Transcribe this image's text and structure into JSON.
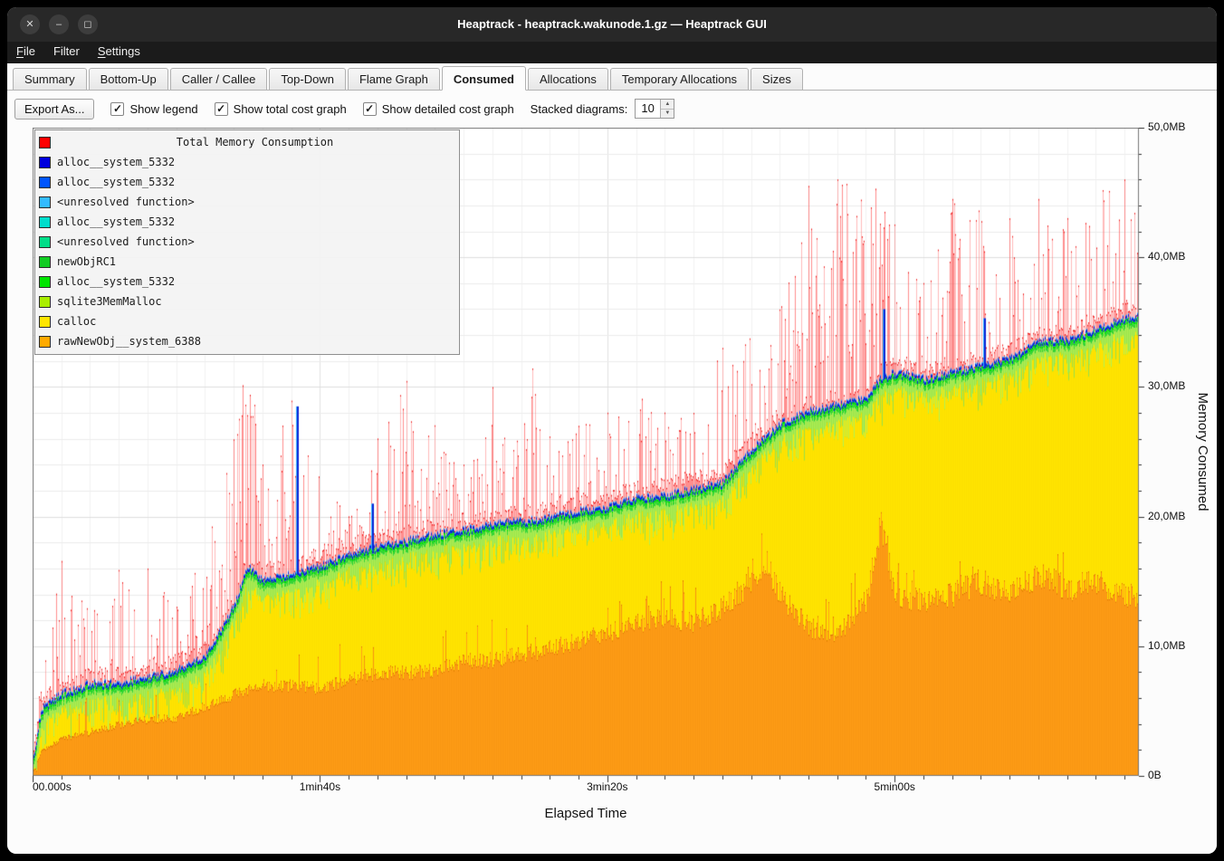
{
  "window": {
    "title": "Heaptrack - heaptrack.wakunode.1.gz — Heaptrack GUI",
    "controls": [
      {
        "id": "close",
        "glyph": "✕"
      },
      {
        "id": "minimize",
        "glyph": "–"
      },
      {
        "id": "maximize",
        "glyph": "◻"
      }
    ]
  },
  "menu": {
    "items": [
      {
        "id": "file",
        "mnemonic": "F",
        "rest": "ile"
      },
      {
        "id": "filter",
        "mnemonic": "",
        "rest": "Filter"
      },
      {
        "id": "settings",
        "mnemonic": "S",
        "rest": "ettings"
      }
    ]
  },
  "tabs": {
    "items": [
      "Summary",
      "Bottom-Up",
      "Caller / Callee",
      "Top-Down",
      "Flame Graph",
      "Consumed",
      "Allocations",
      "Temporary Allocations",
      "Sizes"
    ],
    "active": "Consumed"
  },
  "toolbar": {
    "export_label": "Export As...",
    "check_glyph": "✓",
    "checkboxes": [
      {
        "label": "Show legend",
        "checked": true
      },
      {
        "label": "Show total cost graph",
        "checked": true
      },
      {
        "label": "Show detailed cost graph",
        "checked": true
      }
    ],
    "stacked_label": "Stacked diagrams:",
    "stacked_value": "10",
    "spin_up": "▲",
    "spin_down": "▼"
  },
  "chart_data": {
    "type": "area",
    "title": "Total Memory Consumption",
    "xlabel": "Elapsed Time",
    "ylabel": "Memory Consumed",
    "x_range": [
      0,
      385
    ],
    "y_range": [
      0,
      50
    ],
    "x_ticks": [
      {
        "t": 0,
        "label": "00.000s"
      },
      {
        "t": 100,
        "label": "1min40s"
      },
      {
        "t": 200,
        "label": "3min20s"
      },
      {
        "t": 300,
        "label": "5min00s"
      }
    ],
    "y_ticks": [
      {
        "v": 0,
        "label": "0B"
      },
      {
        "v": 10,
        "label": "10,0MB"
      },
      {
        "v": 20,
        "label": "20,0MB"
      },
      {
        "v": 30,
        "label": "30,0MB"
      },
      {
        "v": 40,
        "label": "40,0MB"
      },
      {
        "v": 50,
        "label": "50,0MB"
      }
    ],
    "legend_title": {
      "label": "Total Memory Consumption",
      "color": "#ff0000"
    },
    "legend": [
      {
        "label": "alloc__system_5332",
        "color": "#0000dd"
      },
      {
        "label": "alloc__system_5332",
        "color": "#0055ff"
      },
      {
        "label": "<unresolved function>",
        "color": "#33bbff"
      },
      {
        "label": "alloc__system_5332",
        "color": "#00ddcc"
      },
      {
        "label": "<unresolved function>",
        "color": "#00dd88"
      },
      {
        "label": "newObjRC1",
        "color": "#11cc22"
      },
      {
        "label": "alloc__system_5332",
        "color": "#00e400"
      },
      {
        "label": "sqlite3MemMalloc",
        "color": "#aaee00"
      },
      {
        "label": "calloc",
        "color": "#ffe600"
      },
      {
        "label": "rawNewObj__system_6388",
        "color": "#ffaa00"
      }
    ],
    "colors": {
      "orange": "#ff9e17",
      "orange_edge": "#e07800",
      "yellow": "#ffe600",
      "yellowgreen": "#c9ea12",
      "fuzz": "#b0ee55",
      "green": "#33d433",
      "green2": "#00e100",
      "blue": "#0b24d6",
      "blue_light": "#35b2ff",
      "red_edge": "#ee2222",
      "red_fill": "rgba(255,90,90,0.42)",
      "red_fill2": "rgba(255,40,40,0.30)"
    },
    "keyframes": {
      "t": [
        0,
        3,
        10,
        20,
        30,
        40,
        50,
        60,
        70,
        75,
        80,
        90,
        100,
        110,
        120,
        130,
        140,
        150,
        160,
        170,
        175,
        180,
        190,
        200,
        210,
        220,
        230,
        240,
        250,
        255,
        260,
        270,
        280,
        290,
        295,
        300,
        310,
        320,
        330,
        340,
        350,
        360,
        370,
        380,
        385
      ],
      "orange": [
        0.3,
        2.0,
        2.9,
        3.4,
        4.0,
        4.4,
        4.5,
        5.4,
        6.3,
        6.6,
        7.0,
        7.0,
        6.8,
        7.4,
        8.0,
        8.0,
        8.2,
        8.9,
        9.0,
        9.4,
        9.6,
        9.9,
        10.4,
        11.0,
        11.8,
        12.4,
        11.8,
        13.0,
        15.0,
        16.8,
        14.0,
        11.5,
        11.0,
        13.5,
        19.5,
        14.0,
        13.5,
        14.0,
        15.0,
        14.0,
        15.5,
        14.5,
        15.0,
        14.0,
        13.7
      ],
      "blue": [
        1.0,
        5.0,
        6.2,
        7.0,
        7.0,
        7.5,
        8.0,
        9.0,
        13.0,
        16.0,
        15.0,
        15.5,
        16.0,
        17.0,
        17.5,
        18.0,
        18.5,
        18.8,
        19.3,
        19.5,
        19.6,
        19.8,
        20.3,
        20.6,
        21.3,
        21.5,
        22.0,
        22.5,
        25.0,
        26.0,
        27.0,
        28.0,
        28.5,
        29.0,
        30.5,
        31.0,
        30.5,
        31.0,
        31.5,
        32.0,
        33.4,
        33.5,
        34.3,
        35.2,
        35.3
      ],
      "red_peak": [
        6,
        10,
        16.6,
        13,
        15.9,
        16,
        13,
        18,
        26,
        33,
        24,
        29,
        23,
        20,
        26,
        30.5,
        27,
        24,
        30,
        26,
        35,
        26,
        27,
        28,
        30.5,
        28,
        28,
        33,
        34,
        34.5,
        36,
        45.5,
        46,
        46.5,
        45,
        42.5,
        38,
        44.5,
        44,
        43,
        44.5,
        43,
        45,
        46,
        45.5
      ]
    },
    "blue_spikes": [
      {
        "t": 92,
        "v": 28.5
      },
      {
        "t": 118,
        "v": 21.0
      },
      {
        "t": 296,
        "v": 36.0
      },
      {
        "t": 331,
        "v": 35.3
      }
    ]
  }
}
